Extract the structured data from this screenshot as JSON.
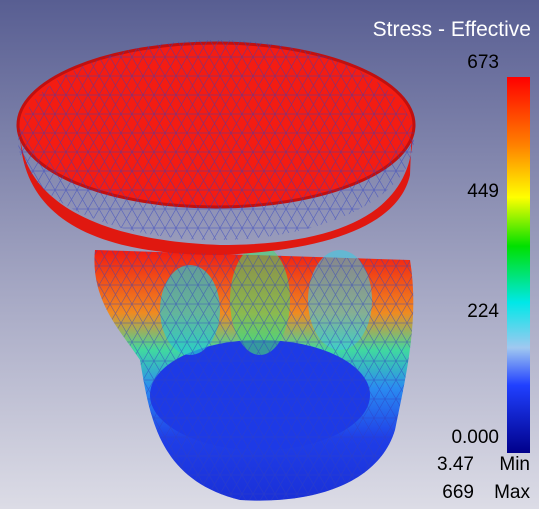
{
  "legend": {
    "title": "Stress - Effective",
    "ticks": [
      "673",
      "449",
      "224",
      "0.000"
    ],
    "min": {
      "value": "3.47",
      "label": "Min"
    },
    "max": {
      "value": "669",
      "label": "Max"
    }
  }
}
